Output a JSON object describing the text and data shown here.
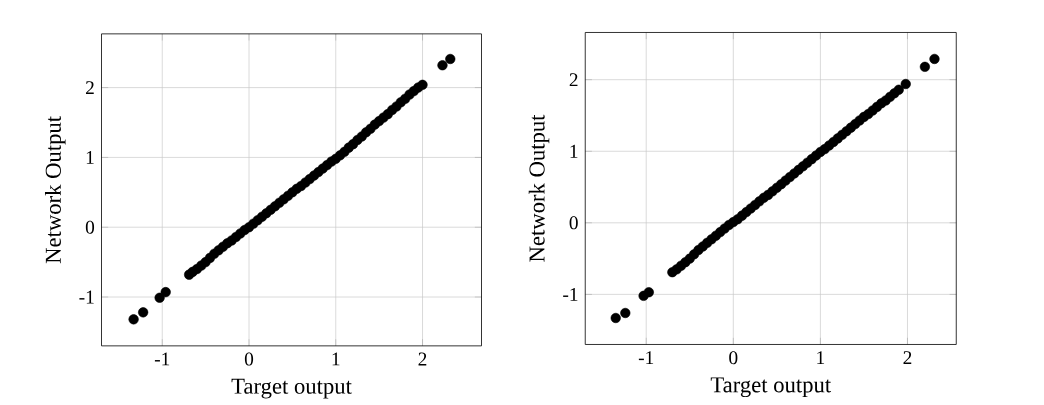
{
  "chart_data": [
    {
      "type": "scatter",
      "xlabel": "Target output",
      "ylabel": "Network Output",
      "xlim": [
        -1.7,
        2.68
      ],
      "ylim": [
        -1.7,
        2.77
      ],
      "xticks": [
        -1,
        0,
        1,
        2
      ],
      "yticks": [
        -1,
        0,
        1,
        2
      ],
      "grid": true,
      "marker": "circle",
      "series": [
        {
          "color": "#000000",
          "x": [
            -1.33,
            -1.22,
            -1.03,
            -0.96,
            -0.69,
            -0.65,
            -0.6,
            -0.55,
            -0.5,
            -0.45,
            -0.4,
            -0.35,
            -0.3,
            -0.25,
            -0.2,
            -0.15,
            -0.1,
            -0.05,
            0,
            0.05,
            0.1,
            0.15,
            0.2,
            0.25,
            0.3,
            0.35,
            0.4,
            0.45,
            0.5,
            0.55,
            0.6,
            0.65,
            0.7,
            0.75,
            0.8,
            0.85,
            0.9,
            0.95,
            1,
            1.05,
            1.1,
            1.15,
            1.2,
            1.25,
            1.3,
            1.35,
            1.4,
            1.45,
            1.5,
            1.55,
            1.6,
            1.65,
            1.7,
            1.75,
            1.8,
            1.85,
            1.9,
            1.95,
            2,
            2.23,
            2.32
          ],
          "values": [
            -1.32,
            -1.22,
            -1.01,
            -0.93,
            -0.68,
            -0.64,
            -0.6,
            -0.55,
            -0.5,
            -0.44,
            -0.38,
            -0.33,
            -0.28,
            -0.23,
            -0.19,
            -0.14,
            -0.09,
            -0.04,
            0,
            0.05,
            0.1,
            0.15,
            0.2,
            0.25,
            0.3,
            0.35,
            0.4,
            0.45,
            0.5,
            0.55,
            0.59,
            0.64,
            0.69,
            0.74,
            0.79,
            0.84,
            0.89,
            0.94,
            0.98,
            1.03,
            1.08,
            1.14,
            1.19,
            1.25,
            1.3,
            1.36,
            1.41,
            1.47,
            1.52,
            1.57,
            1.62,
            1.68,
            1.73,
            1.79,
            1.84,
            1.9,
            1.95,
            2.0,
            2.04,
            2.32,
            2.41
          ]
        }
      ]
    },
    {
      "type": "scatter",
      "xlabel": "Target output",
      "ylabel": "Network Output",
      "xlim": [
        -1.7,
        2.56
      ],
      "ylim": [
        -1.7,
        2.66
      ],
      "xticks": [
        -1,
        0,
        1,
        2
      ],
      "yticks": [
        -1,
        0,
        1,
        2
      ],
      "grid": true,
      "marker": "circle",
      "series": [
        {
          "color": "#000000",
          "x": [
            -1.35,
            -1.24,
            -1.03,
            -0.97,
            -0.7,
            -0.65,
            -0.6,
            -0.55,
            -0.5,
            -0.45,
            -0.4,
            -0.35,
            -0.3,
            -0.25,
            -0.2,
            -0.15,
            -0.1,
            -0.05,
            0,
            0.05,
            0.1,
            0.15,
            0.2,
            0.25,
            0.3,
            0.35,
            0.4,
            0.45,
            0.5,
            0.55,
            0.6,
            0.65,
            0.7,
            0.75,
            0.8,
            0.85,
            0.9,
            0.95,
            1,
            1.05,
            1.1,
            1.15,
            1.2,
            1.25,
            1.3,
            1.35,
            1.4,
            1.45,
            1.5,
            1.55,
            1.6,
            1.65,
            1.7,
            1.75,
            1.8,
            1.85,
            1.9,
            1.98,
            2.2,
            2.31
          ],
          "values": [
            -1.33,
            -1.26,
            -1.02,
            -0.97,
            -0.69,
            -0.65,
            -0.6,
            -0.55,
            -0.5,
            -0.44,
            -0.38,
            -0.33,
            -0.28,
            -0.23,
            -0.18,
            -0.13,
            -0.08,
            -0.03,
            0.01,
            0.05,
            0.1,
            0.15,
            0.2,
            0.25,
            0.3,
            0.35,
            0.39,
            0.44,
            0.49,
            0.54,
            0.59,
            0.64,
            0.69,
            0.74,
            0.79,
            0.84,
            0.89,
            0.94,
            0.99,
            1.03,
            1.08,
            1.13,
            1.18,
            1.23,
            1.28,
            1.33,
            1.38,
            1.43,
            1.48,
            1.52,
            1.57,
            1.62,
            1.67,
            1.71,
            1.76,
            1.81,
            1.86,
            1.94,
            2.18,
            2.29
          ]
        }
      ]
    }
  ]
}
